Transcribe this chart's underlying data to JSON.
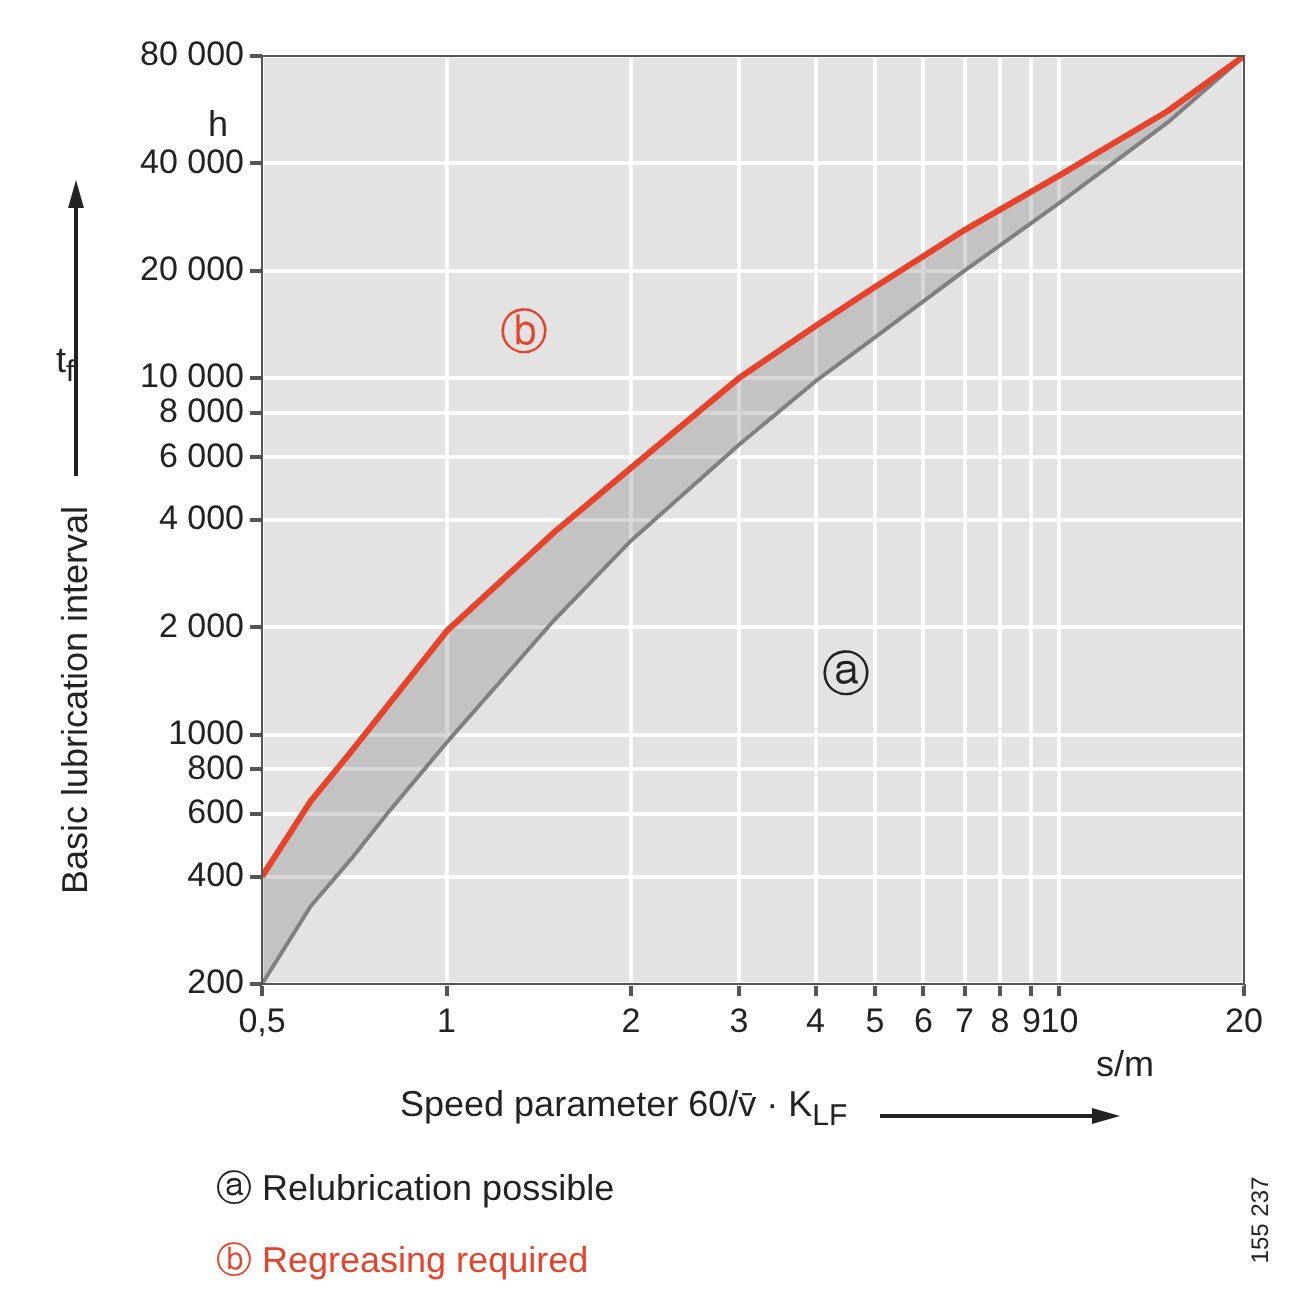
{
  "chart_data": {
    "type": "line",
    "xlabel": "Speed parameter 60/v̄ · K$_{LF}$",
    "ylabel": "Basic lubrication interval",
    "log": "xy",
    "grid": true,
    "legend": false,
    "marker": "none",
    "line_style": "solid",
    "xlim": [
      0.5,
      20
    ],
    "ylim": [
      200,
      80000
    ],
    "xticks": [
      {
        "value": 0.5,
        "label": "0,5"
      },
      1,
      2,
      3,
      4,
      5,
      6,
      7,
      8,
      9,
      10,
      20
    ],
    "yticks": [
      200,
      400,
      600,
      800,
      1000,
      {
        "value": 2000,
        "label": "2 000"
      },
      {
        "value": 4000,
        "label": "4 000"
      },
      {
        "value": 6000,
        "label": "6 000"
      },
      {
        "value": 8000,
        "label": "8 000"
      },
      {
        "value": 10000,
        "label": "10 000"
      },
      {
        "value": 20000,
        "label": "20 000"
      },
      {
        "value": 40000,
        "label": "40 000"
      },
      {
        "value": 80000,
        "label": "80 000"
      }
    ],
    "series": [
      {
        "color": "#e8432a",
        "x": [
          0.5,
          0.6,
          0.7,
          0.8,
          1,
          1.5,
          2,
          3,
          4,
          5,
          7,
          10,
          15,
          20
        ],
        "values": [
          400,
          650,
          900,
          1200,
          1950,
          3700,
          5600,
          10000,
          14000,
          18000,
          26000,
          37000,
          56000,
          80000
        ]
      },
      {
        "color": "#808080",
        "x": [
          0.5,
          0.6,
          0.7,
          0.8,
          1,
          1.5,
          2,
          3,
          4,
          5,
          7,
          10,
          15,
          20
        ],
        "values": [
          200,
          330,
          450,
          600,
          950,
          2100,
          3500,
          6500,
          9800,
          13000,
          20000,
          31000,
          52000,
          80000
        ]
      }
    ],
    "annotations": [
      "ⓑ",
      "ⓐ",
      "h",
      "s/m",
      "t$_{f}$",
      "ⓐ Relubrication possible",
      "ⓑ Regreasing required",
      "155 237"
    ]
  }
}
